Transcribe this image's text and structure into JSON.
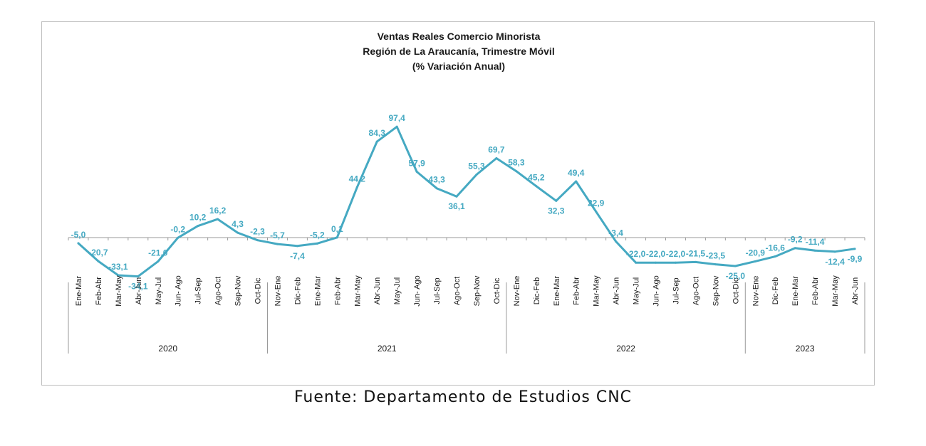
{
  "chart_data": {
    "type": "line",
    "title": [
      "Ventas Reales Comercio Minorista",
      "Región de La Araucanía, Trimestre Móvil",
      "(% Variación Anual)"
    ],
    "categories": [
      "Ene-Mar",
      "Feb-Abr",
      "Mar-May",
      "Abr-Jun",
      "May-Jul",
      "Jun- Ago",
      "Jul-Sep",
      "Ago-Oct",
      "Sep-Nov",
      "Oct-Dic",
      "Nov-Ene",
      "Dic-Feb",
      "Ene-Mar",
      "Feb-Abr",
      "Mar-May",
      "Abr-Jun",
      "May-Jul",
      "Jun- Ago",
      "Jul-Sep",
      "Ago-Oct",
      "Sep-Nov",
      "Oct-Dic",
      "Nov-Ene",
      "Dic-Feb",
      "Ene-Mar",
      "Feb-Abr",
      "Mar-May",
      "Abr-Jun",
      "May-Jul",
      "Jun- Ago",
      "Jul-Sep",
      "Ago-Oct",
      "Sep-Nov",
      "Oct-Dic",
      "Nov-Ene",
      "Dic-Feb",
      "Ene-Mar",
      "Feb-Abr",
      "Mar-May",
      "Abr-Jun"
    ],
    "values": [
      -5.0,
      -20.7,
      -33.1,
      -34.1,
      -21.0,
      -0.2,
      10.2,
      16.2,
      4.3,
      -2.3,
      -5.7,
      -7.4,
      -5.2,
      0.1,
      44.2,
      84.3,
      97.4,
      57.9,
      43.3,
      36.1,
      55.3,
      69.7,
      58.3,
      45.2,
      32.3,
      49.4,
      22.9,
      -3.4,
      -22.0,
      -22.0,
      -22.0,
      -21.5,
      -23.5,
      -25.0,
      -20.9,
      -16.6,
      -9.2,
      -11.4,
      -12.4,
      -9.9
    ],
    "labels": [
      "-5,0",
      "-20,7",
      "-33,1",
      "-34,1",
      "-21,0",
      "-0,2",
      "10,2",
      "16,2",
      "4,3",
      "-2,3",
      "-5,7",
      "-7,4",
      "-5,2",
      "0,1",
      "44,2",
      "84,3",
      "97,4",
      "57,9",
      "43,3",
      "36,1",
      "55,3",
      "69,7",
      "58,3",
      "45,2",
      "32,3",
      "49,4",
      "22,9",
      "-3,4",
      "-22,0",
      "-22,0",
      "-22,0",
      "-21,5",
      "-23,5",
      "-25,0",
      "-20,9",
      "-16,6",
      "-9,2",
      "-11,4",
      "-12,4",
      "-9,9"
    ],
    "groups": [
      {
        "label": "2020",
        "start": 0,
        "count": 10
      },
      {
        "label": "2021",
        "start": 10,
        "count": 12
      },
      {
        "label": "2022",
        "start": 22,
        "count": 12
      },
      {
        "label": "2023",
        "start": 34,
        "count": 6
      }
    ],
    "line_color": "#45a9c2",
    "ylim": [
      -50,
      125
    ],
    "grid": false,
    "legend": "none"
  },
  "source": "Fuente:  Departamento  de  Estudios  CNC"
}
